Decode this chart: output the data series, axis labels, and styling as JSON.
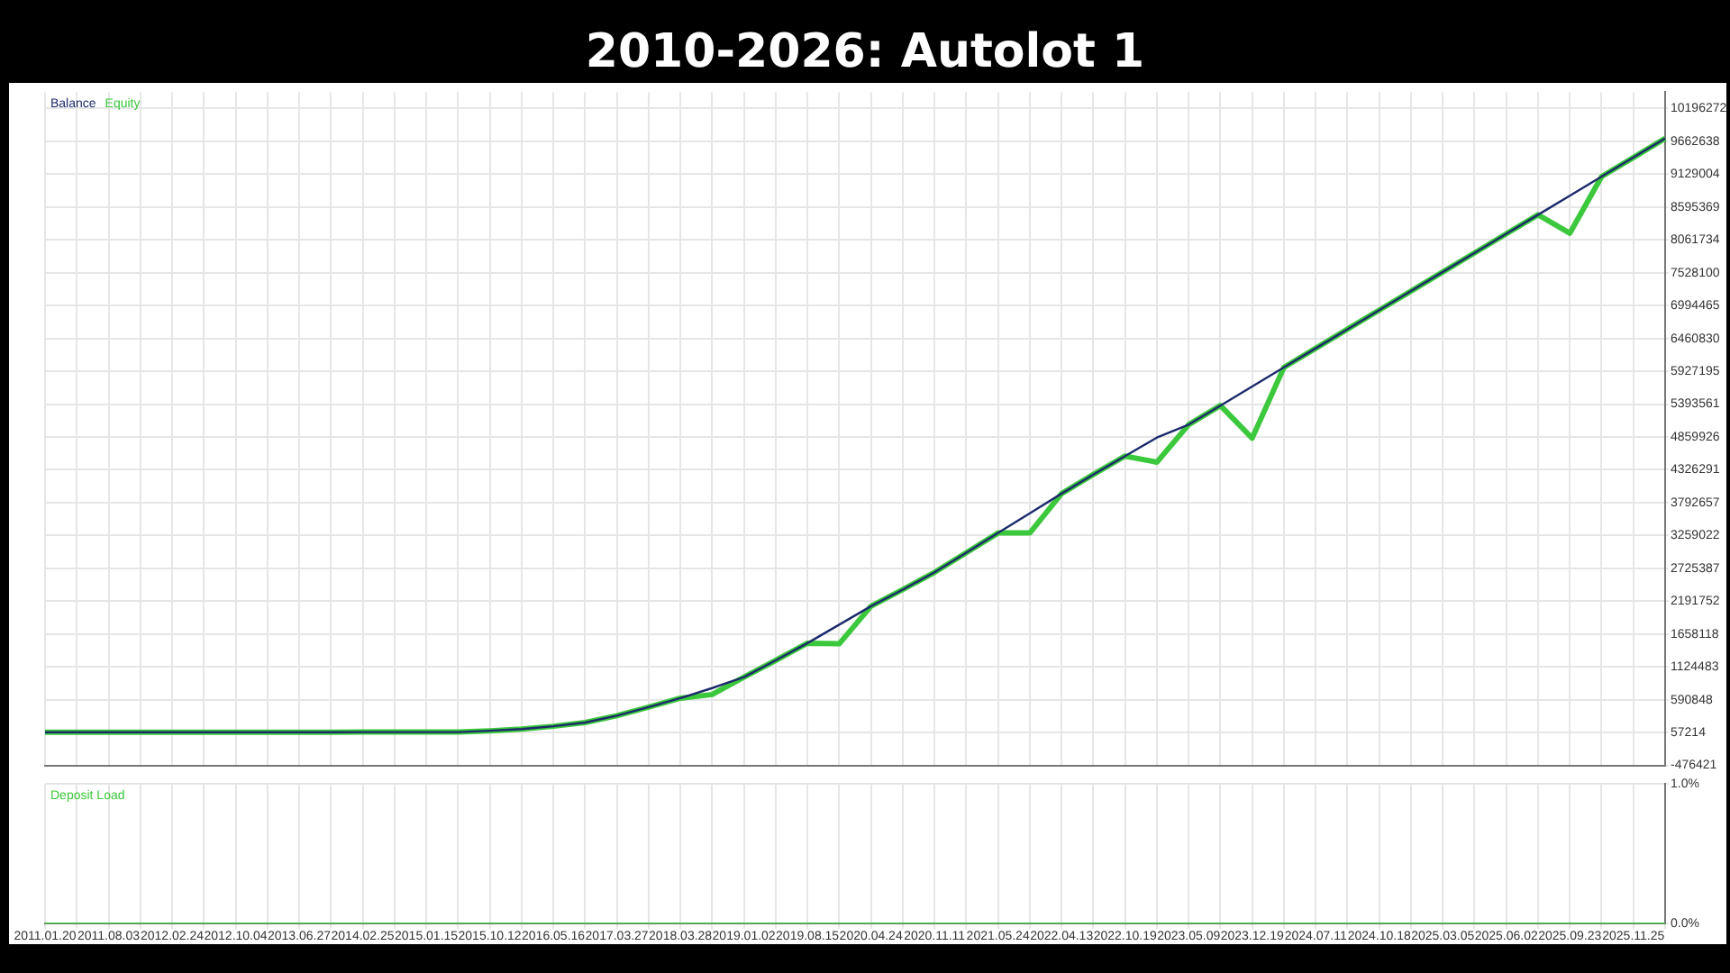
{
  "chart_data": [
    {
      "type": "line",
      "title": "2010-2026: Autolot 1",
      "categories": [
        "2011.01.20",
        null,
        "2011.08.03",
        null,
        "2012.02.24",
        null,
        "2012.10.04",
        null,
        "2013.06.27",
        null,
        "2014.02.25",
        null,
        "2015.01.15",
        null,
        "2015.10.12",
        null,
        "2016.05.16",
        null,
        "2017.03.27",
        null,
        "2018.03.28",
        null,
        "2019.01.02",
        null,
        "2019.08.15",
        null,
        "2020.04.24",
        null,
        "2020.11.11",
        null,
        "2021.05.24",
        null,
        "2022.04.13",
        null,
        "2022.10.19",
        null,
        "2023.05.09",
        null,
        "2023.12.19",
        null,
        "2024.07.11",
        null,
        "2024.10.18",
        null,
        "2025.03.05",
        null,
        "2025.06.02",
        null,
        "2025.09.23",
        null,
        "2025.11.25",
        null
      ],
      "series": [
        {
          "name": "Balance",
          "color": "#1c2a6b",
          "values": [
            62000,
            62000,
            62000,
            62000,
            62000,
            62000,
            62000,
            62000,
            62000,
            62000,
            65000,
            65000,
            65000,
            65000,
            86000,
            115000,
            160000,
            220000,
            332000,
            470000,
            616000,
            780000,
            958000,
            1230000,
            1510000,
            1810000,
            2110000,
            2380000,
            2660000,
            2980000,
            3300000,
            3620000,
            3940000,
            4250000,
            4550000,
            4850000,
            5060000,
            5370000,
            5680000,
            5990000,
            6300000,
            6610000,
            6920000,
            7230000,
            7540000,
            7850000,
            8160000,
            8470000,
            8780000,
            9090000,
            9400000,
            9710000
          ]
        },
        {
          "name": "Equity",
          "color": "#3cc83c",
          "values": [
            62000,
            62000,
            62000,
            62000,
            62000,
            62000,
            62000,
            62000,
            62000,
            62000,
            65000,
            65000,
            65000,
            65000,
            86000,
            115000,
            160000,
            220000,
            332000,
            470000,
            616000,
            676000,
            958000,
            1230000,
            1510000,
            1500000,
            2110000,
            2380000,
            2660000,
            2980000,
            3300000,
            3300000,
            3940000,
            4250000,
            4550000,
            4450000,
            5060000,
            5370000,
            4840000,
            5990000,
            6300000,
            6610000,
            6920000,
            7230000,
            7540000,
            7850000,
            8160000,
            8470000,
            8170000,
            9090000,
            9400000,
            9710000
          ]
        }
      ],
      "ylim": [
        -476421,
        10460000
      ],
      "yticks": [
        -476421,
        57214,
        590848,
        1124483,
        1658118,
        2191752,
        2725387,
        3259022,
        3792657,
        4326291,
        4859926,
        5393561,
        5927195,
        6460830,
        6994465,
        7528100,
        8061734,
        8595369,
        9129004,
        9662638,
        10196272
      ],
      "grid": true,
      "legend": "top left",
      "tick_labels": "y",
      "marker": "none"
    },
    {
      "type": "line",
      "categories": [
        "2011.01.20",
        null,
        "2011.08.03",
        null,
        "2012.02.24",
        null,
        "2012.10.04",
        null,
        "2013.06.27",
        null,
        "2014.02.25",
        null,
        "2015.01.15",
        null,
        "2015.10.12",
        null,
        "2016.05.16",
        null,
        "2017.03.27",
        null,
        "2018.03.28",
        null,
        "2019.01.02",
        null,
        "2019.08.15",
        null,
        "2020.04.24",
        null,
        "2020.11.11",
        null,
        "2021.05.24",
        null,
        "2022.04.13",
        null,
        "2022.10.19",
        null,
        "2023.05.09",
        null,
        "2023.12.19",
        null,
        "2024.07.11",
        null,
        "2024.10.18",
        null,
        "2025.03.05",
        null,
        "2025.06.02",
        null,
        "2025.09.23",
        null,
        "2025.11.25",
        null
      ],
      "series": [
        {
          "name": "Deposit Load",
          "color": "#3cc83c",
          "values": [
            0,
            0,
            0,
            0,
            0,
            0,
            0,
            0,
            0,
            0,
            0,
            0,
            0,
            0,
            0,
            0,
            0,
            0,
            0,
            0,
            0,
            0,
            0,
            0,
            0,
            0,
            0,
            0,
            0,
            0,
            0,
            0,
            0,
            0,
            0,
            0,
            0,
            0,
            0,
            0,
            0,
            0,
            0,
            0,
            0,
            0,
            0,
            0,
            0,
            0,
            0,
            0
          ]
        }
      ],
      "ylim": [
        0,
        1
      ],
      "yticks": [
        {
          "value": 0,
          "label": "0.0%"
        },
        {
          "value": 1,
          "label": "1.0%"
        }
      ],
      "grid": true,
      "legend": "top left",
      "marker": "none"
    }
  ]
}
